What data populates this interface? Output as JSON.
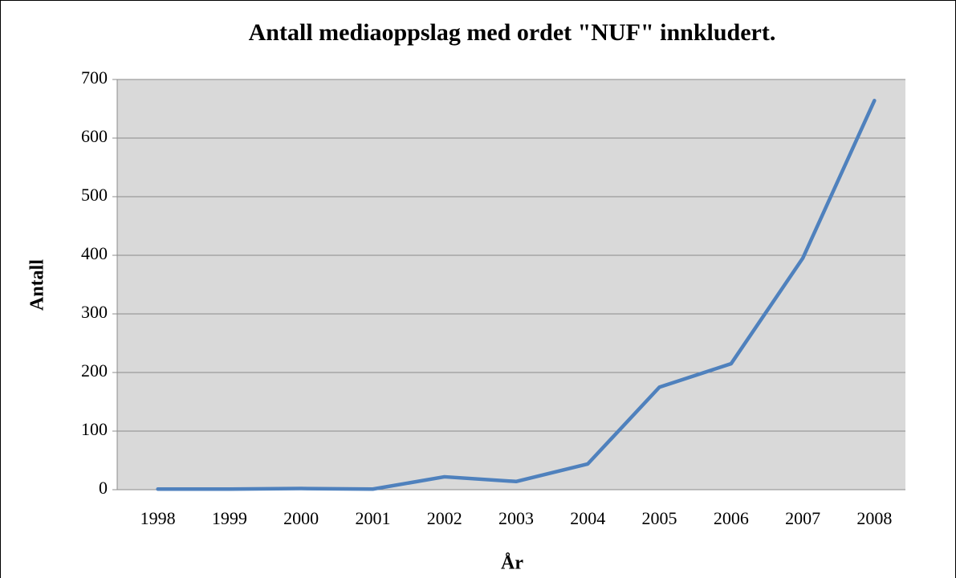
{
  "chart_data": {
    "type": "line",
    "title": "Antall mediaoppslag med ordet \"NUF\" innkludert.",
    "x_label": "År",
    "y_label": "Antall",
    "categories": [
      "1998",
      "1999",
      "2000",
      "2001",
      "2002",
      "2003",
      "2004",
      "2005",
      "2006",
      "2007",
      "2008"
    ],
    "series": [
      {
        "name": "Antall",
        "color": "#4f81bd",
        "values": [
          1,
          1,
          2,
          1,
          22,
          14,
          44,
          175,
          215,
          395,
          664
        ]
      }
    ],
    "ylim": [
      0,
      700
    ],
    "yticks": [
      0,
      100,
      200,
      300,
      400,
      500,
      600,
      700
    ],
    "grid": true
  }
}
